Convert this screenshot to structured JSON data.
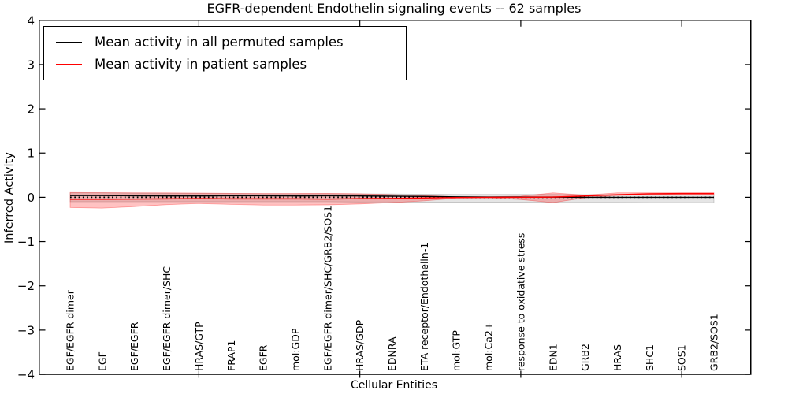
{
  "title": "EGFR-dependent Endothelin signaling events -- 62 samples",
  "axes": {
    "xlabel": "Cellular Entities",
    "ylabel": "Inferred Activity",
    "ytick_labels": [
      "4",
      "3",
      "2",
      "1",
      "0",
      "−1",
      "−2",
      "−3",
      "−4"
    ]
  },
  "legend": {
    "items": [
      {
        "label": "Mean activity in all permuted samples",
        "color": "#000000"
      },
      {
        "label": "Mean activity in patient samples",
        "color": "#ff0000"
      }
    ]
  },
  "chart_data": {
    "type": "line",
    "title": "EGFR-dependent Endothelin signaling events -- 62 samples",
    "xlabel": "Cellular Entities",
    "ylabel": "Inferred Activity",
    "ylim": [
      -4,
      4
    ],
    "yticks": [
      4,
      3,
      2,
      1,
      0,
      -1,
      -2,
      -3,
      -4
    ],
    "xtick_index_positions": [
      4,
      9,
      14,
      19
    ],
    "grid": false,
    "legend_position": "upper left",
    "categories": [
      "EGF/EGFR dimer",
      "EGF",
      "EGF/EGFR",
      "EGF/EGFR dimer/SHC",
      "HRAS/GTP",
      "FRAP1",
      "EGFR",
      "mol:GDP",
      "EGF/EGFR dimer/SHC/GRB2/SOS1",
      "HRAS/GDP",
      "EDNRA",
      "ETA receptor/Endothelin-1",
      "mol:GTP",
      "mol:Ca2+",
      "response to oxidative stress",
      "EDN1",
      "GRB2",
      "HRAS",
      "SHC1",
      "SOS1",
      "GRB2/SOS1"
    ],
    "series": [
      {
        "name": "permuted-samples-std-band",
        "type": "band",
        "color": "#000000",
        "opacity": 0.1,
        "upper": [
          0.1,
          0.1,
          0.095,
          0.09,
          0.085,
          0.085,
          0.08,
          0.08,
          0.08,
          0.075,
          0.075,
          0.07,
          0.065,
          0.065,
          0.065,
          0.065,
          0.06,
          0.06,
          0.06,
          0.06,
          0.06
        ],
        "lower": [
          -0.1,
          -0.1,
          -0.1,
          -0.1,
          -0.1,
          -0.1,
          -0.1,
          -0.1,
          -0.1,
          -0.105,
          -0.105,
          -0.11,
          -0.11,
          -0.11,
          -0.11,
          -0.115,
          -0.115,
          -0.115,
          -0.12,
          -0.12,
          -0.12
        ]
      },
      {
        "name": "patient-samples-std-band",
        "type": "band",
        "color": "#ff0000",
        "opacity": 0.24,
        "upper": [
          0.11,
          0.105,
          0.1,
          0.1,
          0.095,
          0.09,
          0.085,
          0.085,
          0.09,
          0.08,
          0.06,
          0.04,
          0.012,
          0.012,
          0.025,
          0.1,
          0.05,
          0.1,
          0.1,
          0.1,
          0.1
        ],
        "lower": [
          -0.23,
          -0.245,
          -0.21,
          -0.165,
          -0.14,
          -0.16,
          -0.175,
          -0.175,
          -0.17,
          -0.15,
          -0.12,
          -0.08,
          -0.02,
          -0.012,
          -0.05,
          -0.12,
          -0.01,
          0.04,
          0.06,
          0.065,
          0.065
        ]
      },
      {
        "name": "zero-reference-line",
        "type": "line",
        "style": "dotted",
        "color": "#000000",
        "width": 1.7,
        "values": [
          0,
          0,
          0,
          0,
          0,
          0,
          0,
          0,
          0,
          0,
          0,
          0,
          0,
          0,
          0,
          0,
          0,
          0,
          0,
          0,
          0
        ]
      },
      {
        "name": "Mean activity in all permuted samples",
        "type": "line",
        "style": "solid",
        "color": "#000000",
        "width": 1.4,
        "values": [
          0.04,
          0.04,
          0.035,
          0.03,
          0.03,
          0.035,
          0.035,
          0.03,
          0.035,
          0.03,
          0.025,
          0.02,
          0.01,
          0.005,
          0.005,
          0.005,
          0.0,
          0.0,
          0.0,
          0.0,
          0.0
        ]
      },
      {
        "name": "Mean activity in patient samples",
        "type": "line",
        "style": "solid",
        "color": "#ff0000",
        "width": 1.4,
        "values": [
          -0.045,
          -0.045,
          -0.04,
          -0.035,
          -0.03,
          -0.035,
          -0.035,
          -0.035,
          -0.04,
          -0.03,
          -0.025,
          -0.015,
          -0.005,
          0.0,
          0.0,
          0.005,
          0.03,
          0.06,
          0.08,
          0.085,
          0.085
        ]
      }
    ]
  }
}
